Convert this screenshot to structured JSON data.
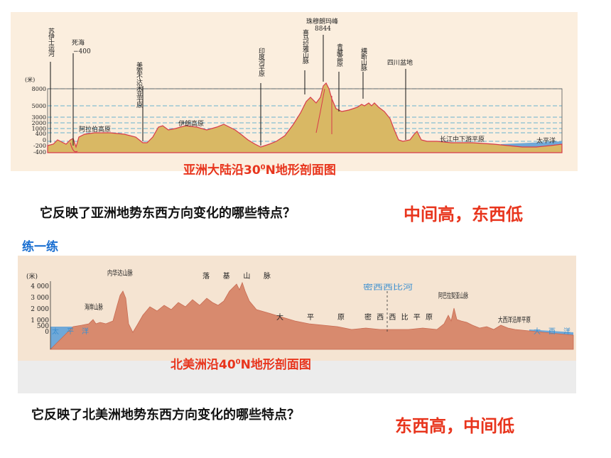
{
  "asia": {
    "caption_main": "亚洲大陆沿30",
    "caption_sup": "0",
    "caption_tail": "N地形剖面图",
    "y_unit": "(米)",
    "y_ticks": [
      "8000",
      "5000",
      "3000",
      "2000",
      "1000",
      "400",
      "0",
      "-200",
      "-400"
    ],
    "labels": {
      "suez": "苏伊士运河",
      "dead_sea": "死海",
      "dead_sea_val": "−400",
      "arabian": "阿拉伯高原",
      "mesopotamia": "美索不达米亚平原",
      "iran": "伊朗高原",
      "indus": "印度河平原",
      "everest": "珠穆朗玛峰",
      "everest_val": "8844",
      "himalaya": "喜马拉雅山脉",
      "tibet": "青藏高原",
      "hengduan": "横断山脉",
      "sichuan": "四川盆地",
      "yangtze": "长江中下游平原",
      "pacific": "太平洋"
    }
  },
  "question1": "它反映了亚洲地势东西方向变化的哪些特点？",
  "answer1": "中间高，东西低",
  "practice": "练一练",
  "na": {
    "caption_main": "北美洲沿40",
    "caption_sup": "0",
    "caption_tail": "N地形剖面图",
    "y_unit": "(米)",
    "y_ticks": [
      "4 000",
      "3 000",
      "2 000",
      "1 000",
      "500",
      "0"
    ],
    "labels": {
      "nevada": "内华达山脉",
      "rocky": "落基山脉",
      "coast": "海岸山脉",
      "pacific": "太平洋",
      "plains": "大平原",
      "mississippi_river": "密西西比河",
      "mississippi_plain": "密西西比平原",
      "appalachian": "阿巴拉契亚山脉",
      "atlantic_plain": "大西洋沿岸平原",
      "atlantic": "大西洋"
    }
  },
  "question2": "它反映了北美洲地势东西方向变化的哪些特点？",
  "answer2": "东西高，中间低",
  "colors": {
    "asia_fill": "#d9b864",
    "asia_outline": "#d83a4a",
    "na_fill": "#d88a6e",
    "water": "#6fa8d8",
    "accent_red": "#e8351d",
    "practice_blue": "#1a6fd1"
  }
}
